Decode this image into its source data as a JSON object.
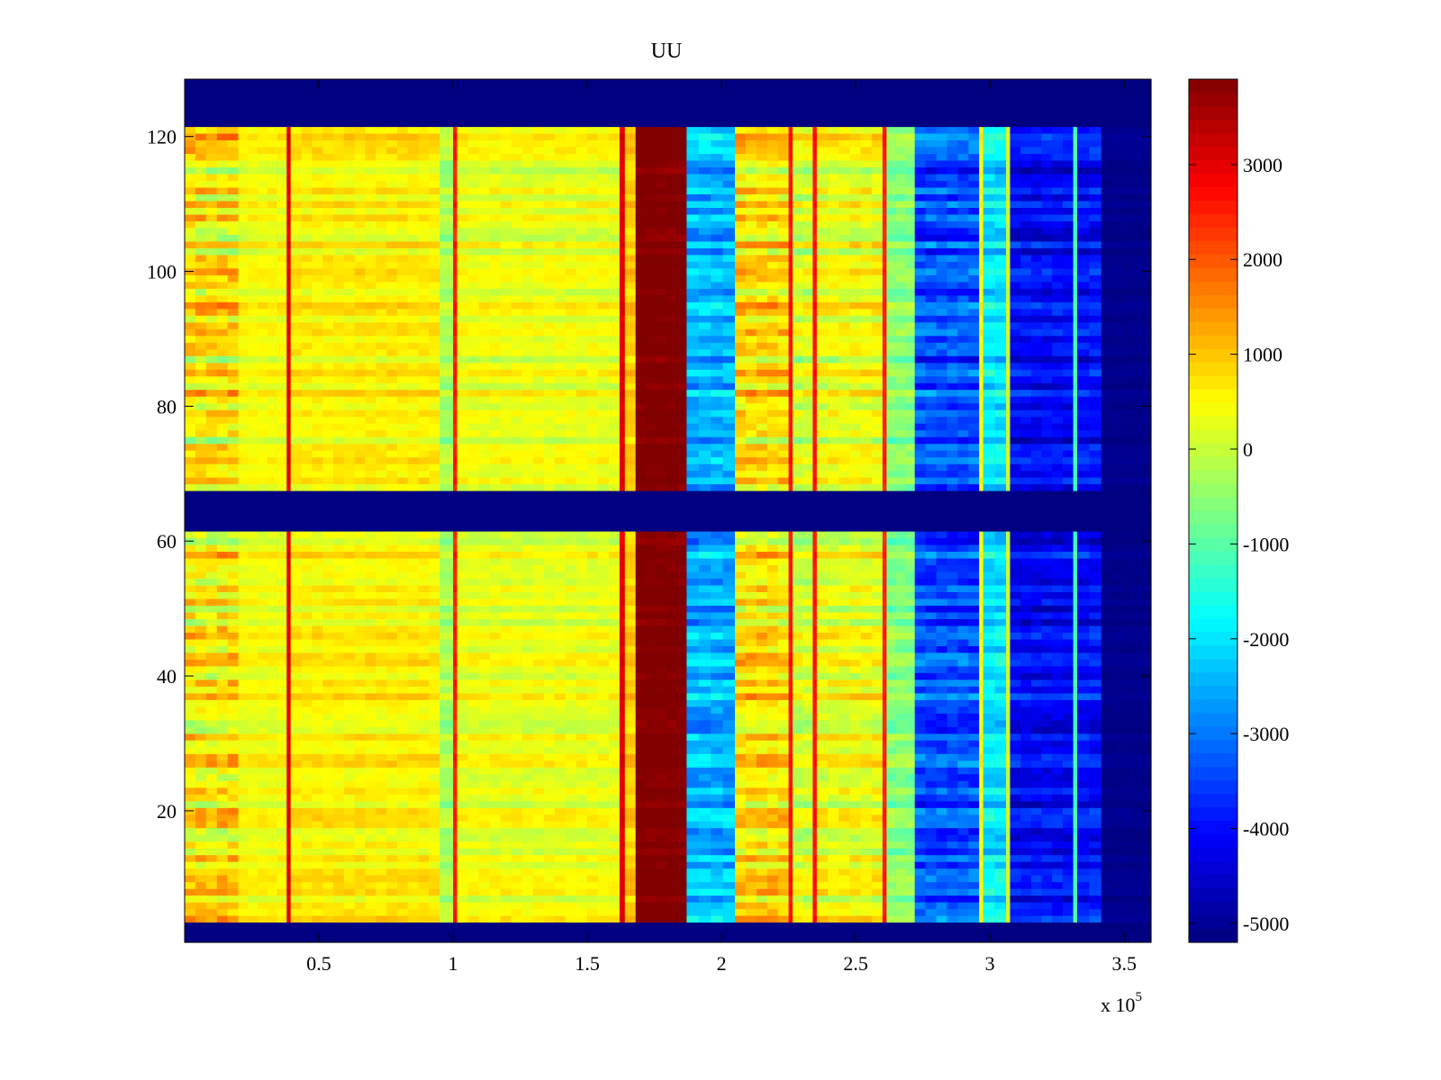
{
  "chart_data": {
    "type": "heatmap",
    "title": "UU",
    "xlabel": "",
    "ylabel": "",
    "x_multiplier_label": "x 10",
    "x_multiplier_exponent": "5",
    "xlim": [
      0,
      3.6
    ],
    "ylim": [
      0.5,
      128.5
    ],
    "rows": 128,
    "xticks": [
      0.5,
      1,
      1.5,
      2,
      2.5,
      3,
      3.5
    ],
    "xtick_labels": [
      "0.5",
      "1",
      "1.5",
      "2",
      "2.5",
      "3",
      "3.5"
    ],
    "yticks": [
      20,
      40,
      60,
      80,
      100,
      120
    ],
    "ytick_labels": [
      "20",
      "40",
      "60",
      "80",
      "100",
      "120"
    ],
    "colormap": "jet",
    "clim": [
      -5200,
      3900
    ],
    "colorbar_ticks": [
      3000,
      2000,
      1000,
      0,
      -1000,
      -2000,
      -3000,
      -4000,
      -5000
    ],
    "colorbar_tick_labels": [
      "3000",
      "2000",
      "1000",
      "0",
      "-1000",
      "-2000",
      "-3000",
      "-4000",
      "-5000"
    ],
    "blank_rows": [
      [
        1,
        3
      ],
      [
        62,
        67
      ],
      [
        122,
        128
      ]
    ],
    "blank_value": -5200,
    "segments": [
      {
        "x0": 0.0,
        "x1": 0.2,
        "value": 600,
        "row_amp": 1400
      },
      {
        "x0": 0.2,
        "x1": 0.38,
        "value": 400,
        "row_amp": 500
      },
      {
        "x0": 0.38,
        "x1": 0.395,
        "value": 3000,
        "row_amp": 200
      },
      {
        "x0": 0.395,
        "x1": 0.95,
        "value": 550,
        "row_amp": 600
      },
      {
        "x0": 0.95,
        "x1": 1.0,
        "value": -300,
        "row_amp": 600
      },
      {
        "x0": 1.0,
        "x1": 1.015,
        "value": 2500,
        "row_amp": 300
      },
      {
        "x0": 1.015,
        "x1": 1.62,
        "value": 300,
        "row_amp": 600
      },
      {
        "x0": 1.62,
        "x1": 1.64,
        "value": 3000,
        "row_amp": 200
      },
      {
        "x0": 1.64,
        "x1": 1.68,
        "value": 900,
        "row_amp": 500
      },
      {
        "x0": 1.68,
        "x1": 1.87,
        "value": 3900,
        "row_amp": 300
      },
      {
        "x0": 1.87,
        "x1": 2.05,
        "value": -2500,
        "row_amp": 1000
      },
      {
        "x0": 2.05,
        "x1": 2.25,
        "value": 700,
        "row_amp": 1200
      },
      {
        "x0": 2.25,
        "x1": 2.265,
        "value": 2600,
        "row_amp": 200
      },
      {
        "x0": 2.265,
        "x1": 2.34,
        "value": 100,
        "row_amp": 900
      },
      {
        "x0": 2.34,
        "x1": 2.355,
        "value": 2600,
        "row_amp": 200
      },
      {
        "x0": 2.355,
        "x1": 2.6,
        "value": 300,
        "row_amp": 900
      },
      {
        "x0": 2.6,
        "x1": 2.615,
        "value": 2500,
        "row_amp": 200
      },
      {
        "x0": 2.615,
        "x1": 2.72,
        "value": -600,
        "row_amp": 700
      },
      {
        "x0": 2.72,
        "x1": 2.96,
        "value": -3400,
        "row_amp": 1100
      },
      {
        "x0": 2.96,
        "x1": 2.975,
        "value": 500,
        "row_amp": 300
      },
      {
        "x0": 2.975,
        "x1": 3.06,
        "value": -2000,
        "row_amp": 900
      },
      {
        "x0": 3.06,
        "x1": 3.075,
        "value": 0,
        "row_amp": 300
      },
      {
        "x0": 3.075,
        "x1": 3.31,
        "value": -4100,
        "row_amp": 900
      },
      {
        "x0": 3.31,
        "x1": 3.325,
        "value": -1200,
        "row_amp": 300
      },
      {
        "x0": 3.325,
        "x1": 3.415,
        "value": -4000,
        "row_amp": 900
      },
      {
        "x0": 3.415,
        "x1": 3.6,
        "value": -5100,
        "row_amp": 150
      }
    ]
  }
}
